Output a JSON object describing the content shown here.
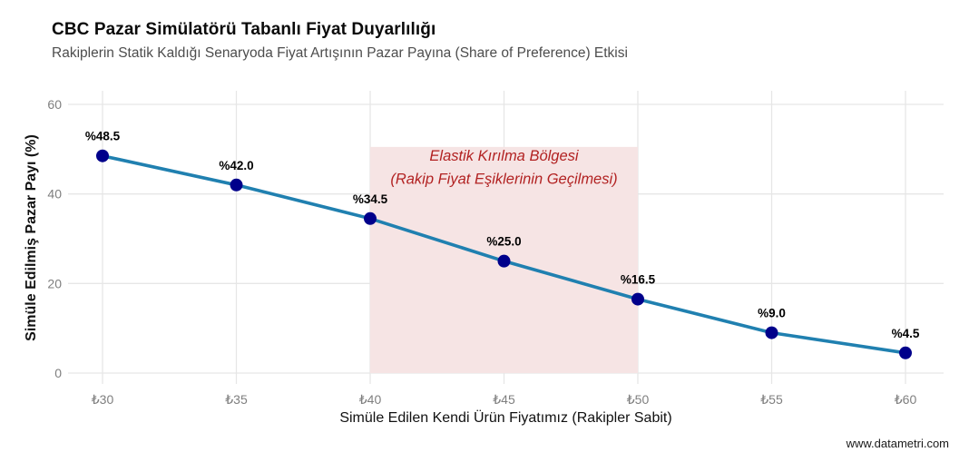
{
  "chart_data": {
    "type": "line",
    "title": "CBC Pazar Simülatörü Tabanlı Fiyat Duyarlılığı",
    "subtitle": "Rakiplerin Statik Kaldığı Senaryoda Fiyat Artışının Pazar Payına (Share of Preference) Etkisi",
    "xlabel": "Simüle Edilen Kendi Ürün Fiyatımız (Rakipler Sabit)",
    "ylabel": "Simüle Edilmiş Pazar Payı (%)",
    "caption": "www.datametri.com",
    "x": [
      30,
      35,
      40,
      45,
      50,
      55,
      60
    ],
    "x_tick_labels": [
      "₺30",
      "₺35",
      "₺40",
      "₺45",
      "₺50",
      "₺55",
      "₺60"
    ],
    "values": [
      48.5,
      42.0,
      34.5,
      25.0,
      16.5,
      9.0,
      4.5
    ],
    "point_labels": [
      "%48.5",
      "%42.0",
      "%34.5",
      "%25.0",
      "%16.5",
      "%9.0",
      "%4.5"
    ],
    "y_ticks": [
      0,
      20,
      40,
      60
    ],
    "y_tick_labels": [
      "0",
      "20",
      "40",
      "60"
    ],
    "xlim": [
      28.7,
      61.4
    ],
    "ylim": [
      -2.4,
      63.1
    ],
    "grid": true,
    "legend": "none",
    "annotation_region": {
      "xmin": 40,
      "xmax": 50,
      "ymin": 0,
      "ymax": 50.5,
      "label_line1": "Elastik Kırılma Bölgesi",
      "label_line2": "(Rakip Fiyat Eşiklerinin Geçilmesi)",
      "label_x": 45,
      "label_y1": 47.4,
      "label_y2": 42.3
    },
    "colors": {
      "line": "#2080B0",
      "point": "#00008B",
      "region_fill": "#F6E4E4",
      "annotation_text": "#B22222",
      "grid": "#E6E6E6",
      "tick_text": "#7F7F7F",
      "subtitle_text": "#4D4D4D",
      "data_label_text": "#000000"
    }
  }
}
